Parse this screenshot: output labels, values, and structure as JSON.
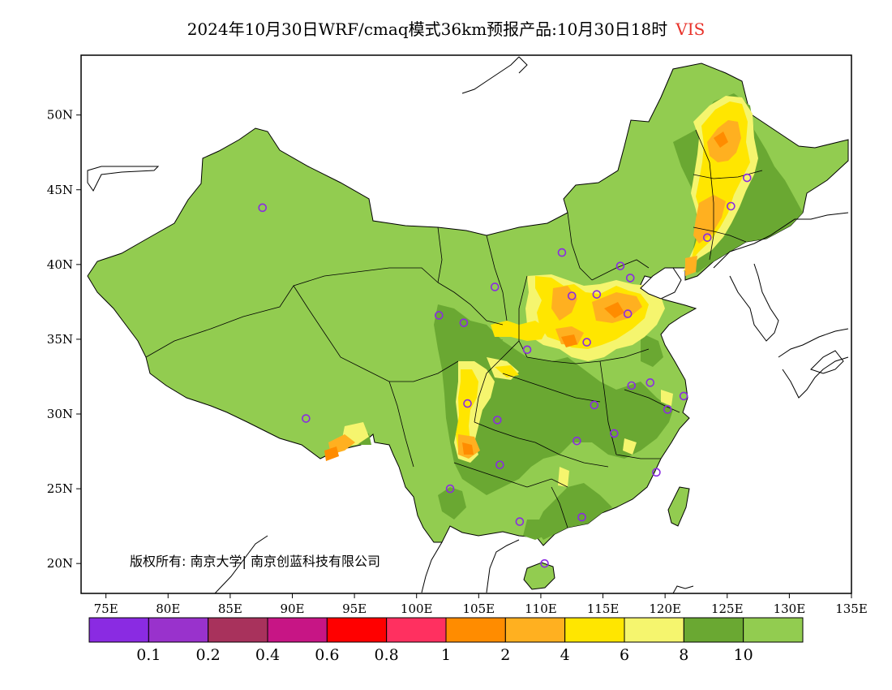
{
  "title": {
    "main": "2024年10月30日WRF/cmaq模式36km预报产品:10月30日18时",
    "variable": "VIS"
  },
  "axes": {
    "lon_labels": [
      "75E",
      "80E",
      "85E",
      "90E",
      "95E",
      "100E",
      "105E",
      "110E",
      "115E",
      "120E",
      "125E",
      "130E",
      "135E"
    ],
    "lat_labels": [
      "50N",
      "45N",
      "40N",
      "35N",
      "30N",
      "25N",
      "20N"
    ],
    "lon_range": [
      73,
      135
    ],
    "lat_range": [
      18,
      54
    ]
  },
  "copyright": "版权所有: 南京大学| 南京创蓝科技有限公司",
  "colorbar": {
    "colors": [
      "#8a2be2",
      "#9932cc",
      "#a8325c",
      "#c71585",
      "#ff0000",
      "#ff3060",
      "#ff8c00",
      "#ffb020",
      "#ffe600",
      "#f5f56e",
      "#6aa832",
      "#92cc50"
    ],
    "labels": [
      "0.1",
      "0.2",
      "0.4",
      "0.6",
      "0.8",
      "1",
      "2",
      "4",
      "6",
      "8",
      "10"
    ]
  },
  "legend_colors": {
    "land": "#92cc50",
    "dark_green": "#6aa832",
    "light_yellow": "#f5f56e",
    "yellow": "#ffe600",
    "orange": "#ffb020",
    "dark_orange": "#ff8c00",
    "station": "#8a2be2"
  },
  "stations": [
    {
      "lon": 87.6,
      "lat": 43.8
    },
    {
      "lon": 91.1,
      "lat": 29.7
    },
    {
      "lon": 101.8,
      "lat": 36.6
    },
    {
      "lon": 103.8,
      "lat": 36.1
    },
    {
      "lon": 106.3,
      "lat": 38.5
    },
    {
      "lon": 111.7,
      "lat": 40.8
    },
    {
      "lon": 108.9,
      "lat": 34.3
    },
    {
      "lon": 112.5,
      "lat": 37.9
    },
    {
      "lon": 114.5,
      "lat": 38.0
    },
    {
      "lon": 116.4,
      "lat": 39.9
    },
    {
      "lon": 117.2,
      "lat": 39.1
    },
    {
      "lon": 117.0,
      "lat": 36.7
    },
    {
      "lon": 113.7,
      "lat": 34.8
    },
    {
      "lon": 117.3,
      "lat": 31.9
    },
    {
      "lon": 118.8,
      "lat": 32.1
    },
    {
      "lon": 121.5,
      "lat": 31.2
    },
    {
      "lon": 120.2,
      "lat": 30.3
    },
    {
      "lon": 114.3,
      "lat": 30.6
    },
    {
      "lon": 115.9,
      "lat": 28.7
    },
    {
      "lon": 112.9,
      "lat": 28.2
    },
    {
      "lon": 119.3,
      "lat": 26.1
    },
    {
      "lon": 113.3,
      "lat": 23.1
    },
    {
      "lon": 108.3,
      "lat": 22.8
    },
    {
      "lon": 110.3,
      "lat": 20.0
    },
    {
      "lon": 106.7,
      "lat": 26.6
    },
    {
      "lon": 102.7,
      "lat": 25.0
    },
    {
      "lon": 104.1,
      "lat": 30.7
    },
    {
      "lon": 106.5,
      "lat": 29.6
    },
    {
      "lon": 123.4,
      "lat": 41.8
    },
    {
      "lon": 125.3,
      "lat": 43.9
    },
    {
      "lon": 126.6,
      "lat": 45.8
    }
  ]
}
